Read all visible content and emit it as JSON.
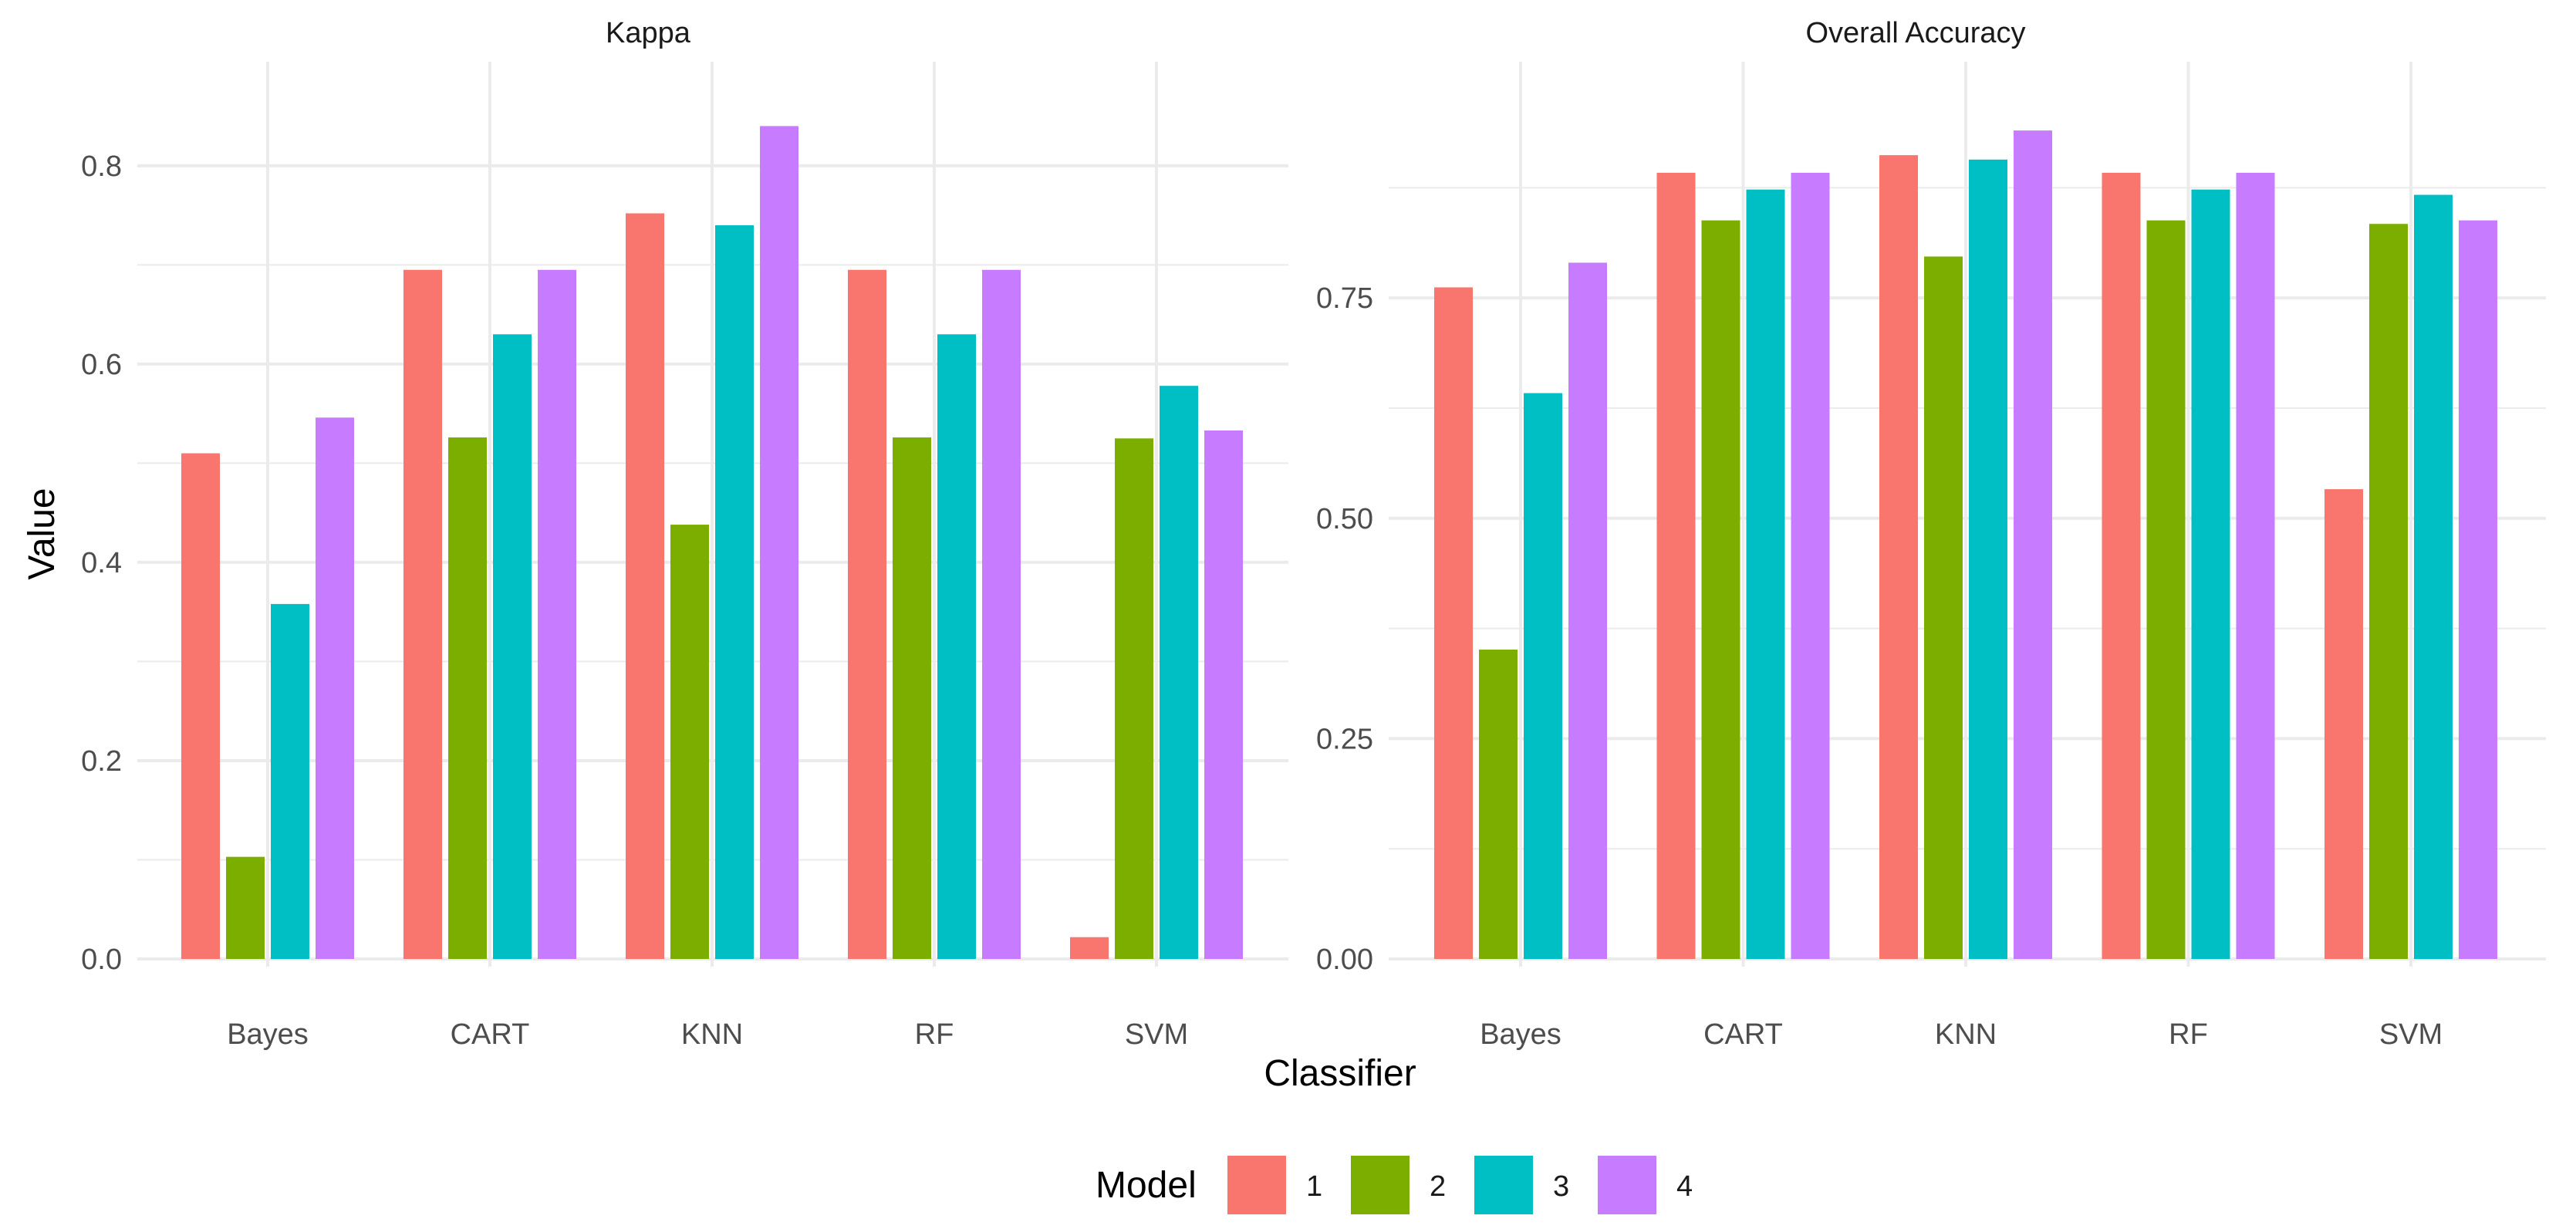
{
  "chart_data": {
    "type": "bar",
    "xlabel": "Classifier",
    "ylabel": "Value",
    "legend_title": "Model",
    "legend_position": "bottom",
    "grid": true,
    "categories": [
      "Bayes",
      "CART",
      "KNN",
      "RF",
      "SVM"
    ],
    "series_labels": [
      "1",
      "2",
      "3",
      "4"
    ],
    "colors": [
      "#F8766D",
      "#7CAE00",
      "#00BFC4",
      "#C77CFF"
    ],
    "panels": [
      {
        "title": "Kappa",
        "ylim": [
          0,
          0.88
        ],
        "yticks": [
          0.0,
          0.2,
          0.4,
          0.6,
          0.8
        ],
        "ytick_labels": [
          "0.0",
          "0.2",
          "0.4",
          "0.6",
          "0.8"
        ],
        "series": [
          {
            "name": "1",
            "values": [
              0.51,
              0.695,
              0.752,
              0.695,
              0.022
            ]
          },
          {
            "name": "2",
            "values": [
              0.103,
              0.526,
              0.438,
              0.526,
              0.525
            ]
          },
          {
            "name": "3",
            "values": [
              0.358,
              0.63,
              0.74,
              0.63,
              0.578
            ]
          },
          {
            "name": "4",
            "values": [
              0.546,
              0.695,
              0.84,
              0.695,
              0.533
            ]
          }
        ]
      },
      {
        "title": "Overall Accuracy",
        "ylim": [
          0,
          0.99
        ],
        "yticks": [
          0.0,
          0.25,
          0.5,
          0.75
        ],
        "ytick_labels": [
          "0.00",
          "0.25",
          "0.50",
          "0.75"
        ],
        "series": [
          {
            "name": "1",
            "values": [
              0.762,
              0.892,
              0.912,
              0.892,
              0.533
            ]
          },
          {
            "name": "2",
            "values": [
              0.351,
              0.838,
              0.797,
              0.838,
              0.834
            ]
          },
          {
            "name": "3",
            "values": [
              0.642,
              0.873,
              0.907,
              0.873,
              0.867
            ]
          },
          {
            "name": "4",
            "values": [
              0.79,
              0.892,
              0.94,
              0.892,
              0.838
            ]
          }
        ]
      }
    ]
  }
}
